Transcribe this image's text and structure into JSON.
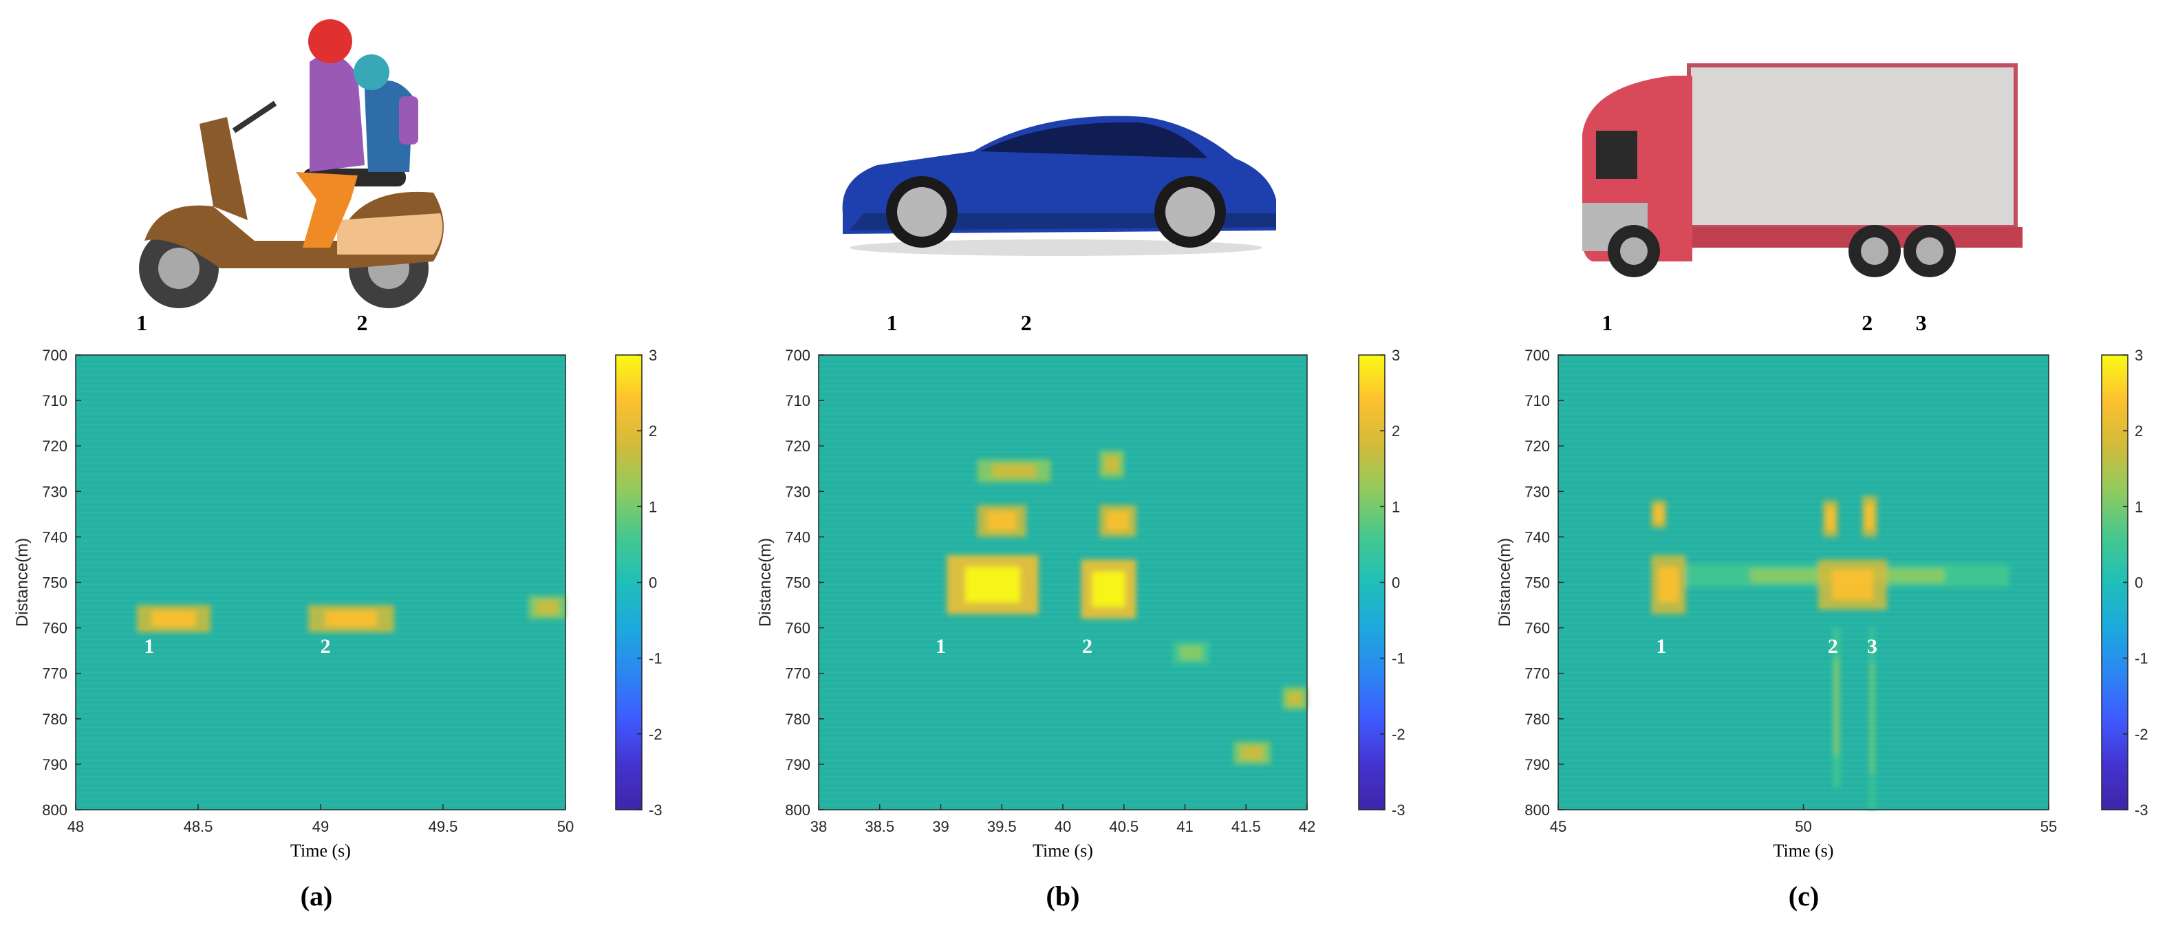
{
  "chart_data": [
    {
      "panel": "a",
      "type": "heatmap",
      "caption": "(a)",
      "vehicle": "motor-scooter-icon",
      "top_labels": [
        {
          "text": "1",
          "x": 48.27
        },
        {
          "text": "2",
          "x": 49.17
        }
      ],
      "xlabel": "Time (s)",
      "ylabel": "Distance(m)",
      "xlim": [
        48,
        50
      ],
      "ylim": [
        700,
        800
      ],
      "xticks": [
        48,
        48.5,
        49,
        49.5,
        50
      ],
      "xtick_labels": [
        "48",
        "48.5",
        "49",
        "49.5",
        "50"
      ],
      "yticks": [
        700,
        710,
        720,
        730,
        740,
        750,
        760,
        770,
        780,
        790,
        800
      ],
      "ytick_labels": [
        "700",
        "710",
        "720",
        "730",
        "740",
        "750",
        "760",
        "770",
        "780",
        "790",
        "800"
      ],
      "clim": [
        -3,
        3
      ],
      "colorbar_ticks": [
        "3",
        "2",
        "1",
        "0",
        "-1",
        "-2",
        "-3"
      ],
      "annotations": [
        {
          "text": "1",
          "x": 48.3,
          "y": 764
        },
        {
          "text": "2",
          "x": 49.02,
          "y": 764
        }
      ],
      "hotspots": [
        {
          "x": [
            48.25,
            48.55
          ],
          "y": [
            755,
            761
          ],
          "level": 2.3
        },
        {
          "x": [
            48.95,
            49.3
          ],
          "y": [
            755,
            761
          ],
          "level": 2.4
        },
        {
          "x": [
            49.85,
            50.0
          ],
          "y": [
            753,
            758
          ],
          "level": 1.6
        }
      ]
    },
    {
      "panel": "b",
      "type": "heatmap",
      "caption": "(b)",
      "vehicle": "sedan-car-icon",
      "top_labels": [
        {
          "text": "1",
          "x": 38.6
        },
        {
          "text": "2",
          "x": 39.7
        }
      ],
      "xlabel": "Time (s)",
      "ylabel": "Distance(m)",
      "xlim": [
        38,
        42
      ],
      "ylim": [
        700,
        800
      ],
      "xticks": [
        38,
        38.5,
        39,
        39.5,
        40,
        40.5,
        41,
        41.5,
        42
      ],
      "xtick_labels": [
        "38",
        "38.5",
        "39",
        "39.5",
        "40",
        "40.5",
        "41",
        "41.5",
        "42"
      ],
      "yticks": [
        700,
        710,
        720,
        730,
        740,
        750,
        760,
        770,
        780,
        790,
        800
      ],
      "ytick_labels": [
        "700",
        "710",
        "720",
        "730",
        "740",
        "750",
        "760",
        "770",
        "780",
        "790",
        "800"
      ],
      "clim": [
        -3,
        3
      ],
      "colorbar_ticks": [
        "3",
        "2",
        "1",
        "0",
        "-1",
        "-2",
        "-3"
      ],
      "annotations": [
        {
          "text": "1",
          "x": 39.0,
          "y": 764
        },
        {
          "text": "2",
          "x": 40.2,
          "y": 764
        }
      ],
      "hotspots": [
        {
          "x": [
            39.05,
            39.8
          ],
          "y": [
            744,
            757
          ],
          "level": 2.8
        },
        {
          "x": [
            39.3,
            39.7
          ],
          "y": [
            733,
            740
          ],
          "level": 2.4
        },
        {
          "x": [
            39.3,
            39.9
          ],
          "y": [
            723,
            728
          ],
          "level": 2.0
        },
        {
          "x": [
            40.15,
            40.6
          ],
          "y": [
            745,
            758
          ],
          "level": 2.8
        },
        {
          "x": [
            40.3,
            40.6
          ],
          "y": [
            733,
            740
          ],
          "level": 2.4
        },
        {
          "x": [
            40.3,
            40.5
          ],
          "y": [
            721,
            727
          ],
          "level": 2.0
        },
        {
          "x": [
            41.4,
            41.7
          ],
          "y": [
            785,
            790
          ],
          "level": 1.6
        },
        {
          "x": [
            40.9,
            41.2
          ],
          "y": [
            763,
            768
          ],
          "level": 1.4
        },
        {
          "x": [
            41.8,
            42.0
          ],
          "y": [
            773,
            778
          ],
          "level": 1.5
        }
      ]
    },
    {
      "panel": "c",
      "type": "heatmap",
      "caption": "(c)",
      "vehicle": "truck-icon",
      "top_labels": [
        {
          "text": "1",
          "x": 46.0
        },
        {
          "text": "2",
          "x": 51.3
        },
        {
          "text": "3",
          "x": 52.4
        }
      ],
      "xlabel": "Time (s)",
      "ylabel": "Distance(m)",
      "xlim": [
        45,
        55
      ],
      "ylim": [
        700,
        800
      ],
      "xticks": [
        45,
        50,
        55
      ],
      "xtick_labels": [
        "45",
        "50",
        "55"
      ],
      "yticks": [
        700,
        710,
        720,
        730,
        740,
        750,
        760,
        770,
        780,
        790,
        800
      ],
      "ytick_labels": [
        "700",
        "710",
        "720",
        "730",
        "740",
        "750",
        "760",
        "770",
        "780",
        "790",
        "800"
      ],
      "clim": [
        -3,
        3
      ],
      "colorbar_ticks": [
        "3",
        "2",
        "1",
        "0",
        "-1",
        "-2",
        "-3"
      ],
      "annotations": [
        {
          "text": "1",
          "x": 47.1,
          "y": 764
        },
        {
          "text": "2",
          "x": 50.6,
          "y": 764
        },
        {
          "text": "3",
          "x": 51.4,
          "y": 764
        }
      ],
      "hotspots": [
        {
          "x": [
            46.9,
            47.6
          ],
          "y": [
            744,
            757
          ],
          "level": 2.6
        },
        {
          "x": [
            46.9,
            47.2
          ],
          "y": [
            732,
            738
          ],
          "level": 2.4
        },
        {
          "x": [
            47.6,
            54.2
          ],
          "y": [
            746,
            751
          ],
          "level": 1.3
        },
        {
          "x": [
            50.3,
            51.7
          ],
          "y": [
            745,
            756
          ],
          "level": 2.5
        },
        {
          "x": [
            50.4,
            50.7
          ],
          "y": [
            732,
            740
          ],
          "level": 2.4
        },
        {
          "x": [
            51.2,
            51.5
          ],
          "y": [
            731,
            740
          ],
          "level": 2.4
        },
        {
          "x": [
            50.6,
            50.75
          ],
          "y": [
            760,
            795
          ],
          "level": 1.3
        },
        {
          "x": [
            51.35,
            51.45
          ],
          "y": [
            760,
            800
          ],
          "level": 1.3
        }
      ]
    }
  ],
  "colors": {
    "background_field": "#26b3a4",
    "colormap": [
      "#3e26a8",
      "#4433d0",
      "#3e5bff",
      "#2c86f2",
      "#1ca9dd",
      "#20bfb8",
      "#45c88f",
      "#8fcb5f",
      "#d2bb3b",
      "#fdc02f",
      "#f9fb15"
    ]
  }
}
